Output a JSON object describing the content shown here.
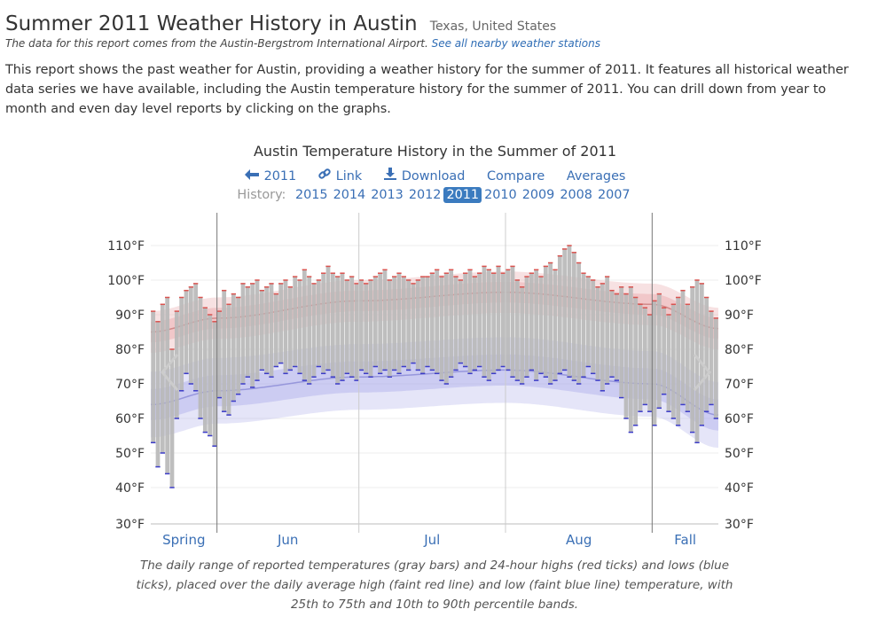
{
  "page": {
    "title": "Summer 2011 Weather History in Austin",
    "location": "Texas, United States",
    "source_note": "The data for this report comes from the Austin-Bergstrom International Airport.",
    "source_link": "See all nearby weather stations",
    "intro": "This report shows the past weather for Austin, providing a weather history for the summer of 2011. It features all historical weather data series we have available, including the Austin temperature history for the summer of 2011. You can drill down from year to month and even day level reports by clicking on the graphs."
  },
  "controls": {
    "back_year": "2011",
    "link": "Link",
    "download": "Download",
    "compare": "Compare",
    "averages": "Averages"
  },
  "history": {
    "label": "History:",
    "years": [
      "2015",
      "2014",
      "2013",
      "2012",
      "2011",
      "2010",
      "2009",
      "2008",
      "2007"
    ],
    "active": "2011"
  },
  "chart_data": {
    "type": "bar",
    "title": "Austin Temperature History in the Summer of 2011",
    "y_ticks": [
      "110°F",
      "100°F",
      "90°F",
      "80°F",
      "70°F",
      "60°F",
      "50°F",
      "40°F",
      "30°F"
    ],
    "ylim": [
      30,
      113
    ],
    "periods": [
      "Spring",
      "Jun",
      "Jul",
      "Aug",
      "Fall"
    ],
    "period_days": [
      14,
      30,
      31,
      31,
      14
    ],
    "grid": true,
    "colors": {
      "range_bar": "#b9b9b9",
      "high_tick": "#d9534f",
      "low_tick": "#3b3bc9",
      "avg_high": "#c97a7a",
      "avg_low": "#8a8ad6",
      "high_band": "#e8a8ab",
      "low_band": "#a8a8e8"
    },
    "averages": {
      "description": "Daily average high / low temperature with 25th-75th and 10th-90th percentile bands, anchor points [day, value]",
      "avg_high": [
        [
          0,
          85
        ],
        [
          14,
          89
        ],
        [
          44,
          94
        ],
        [
          75,
          96.5
        ],
        [
          106,
          93
        ],
        [
          120,
          86
        ]
      ],
      "avg_low": [
        [
          0,
          64
        ],
        [
          14,
          68
        ],
        [
          44,
          72
        ],
        [
          75,
          74
        ],
        [
          106,
          70
        ],
        [
          120,
          61
        ]
      ],
      "high_p25_p75_halfwidth": 3,
      "high_p10_p90_halfwidth": 6,
      "low_p25_p75_halfwidth": 4.5,
      "low_p10_p90_halfwidth": 9.5
    },
    "daily": {
      "description": "Daily reported temperature range in °F, one entry per day starting mid-May 2011",
      "high": [
        91,
        88,
        93,
        95,
        80,
        91,
        95,
        97,
        98,
        99,
        95,
        92,
        90,
        88,
        91,
        97,
        93,
        96,
        95,
        99,
        98,
        99,
        100,
        97,
        98,
        99,
        96,
        99,
        100,
        98,
        101,
        100,
        103,
        101,
        99,
        100,
        102,
        104,
        102,
        101,
        102,
        100,
        101,
        99,
        100,
        99,
        100,
        101,
        102,
        103,
        100,
        101,
        102,
        101,
        100,
        99,
        100,
        101,
        101,
        102,
        103,
        101,
        102,
        103,
        101,
        100,
        102,
        103,
        101,
        102,
        104,
        103,
        102,
        104,
        102,
        103,
        104,
        100,
        98,
        101,
        102,
        103,
        101,
        104,
        105,
        103,
        107,
        109,
        110,
        108,
        105,
        102,
        101,
        100,
        98,
        99,
        101,
        97,
        96,
        98,
        96,
        98,
        95,
        93,
        92,
        90,
        94,
        96,
        92,
        90,
        93,
        95,
        97,
        93,
        98,
        100,
        99,
        95,
        91,
        89
      ],
      "low": [
        53,
        46,
        50,
        44,
        40,
        60,
        68,
        73,
        70,
        68,
        60,
        56,
        55,
        52,
        66,
        62,
        61,
        65,
        67,
        70,
        72,
        69,
        71,
        74,
        73,
        72,
        75,
        76,
        73,
        74,
        75,
        73,
        71,
        70,
        72,
        75,
        73,
        74,
        72,
        70,
        71,
        73,
        72,
        71,
        74,
        73,
        72,
        75,
        73,
        74,
        72,
        74,
        73,
        75,
        74,
        76,
        74,
        73,
        75,
        74,
        73,
        71,
        70,
        72,
        74,
        76,
        75,
        73,
        74,
        75,
        72,
        71,
        73,
        74,
        75,
        74,
        72,
        71,
        70,
        72,
        74,
        71,
        73,
        72,
        70,
        71,
        73,
        74,
        72,
        71,
        70,
        72,
        75,
        73,
        71,
        68,
        70,
        72,
        71,
        66,
        60,
        56,
        58,
        62,
        64,
        62,
        58,
        63,
        67,
        62,
        60,
        58,
        64,
        62,
        56,
        53,
        58,
        62,
        64,
        60
      ]
    }
  },
  "caption": "The daily range of reported temperatures (gray bars) and 24-hour highs (red ticks) and lows (blue ticks), placed over the daily average high (faint red line) and low (faint blue line) temperature, with 25th to 75th and 10th to 90th percentile bands."
}
